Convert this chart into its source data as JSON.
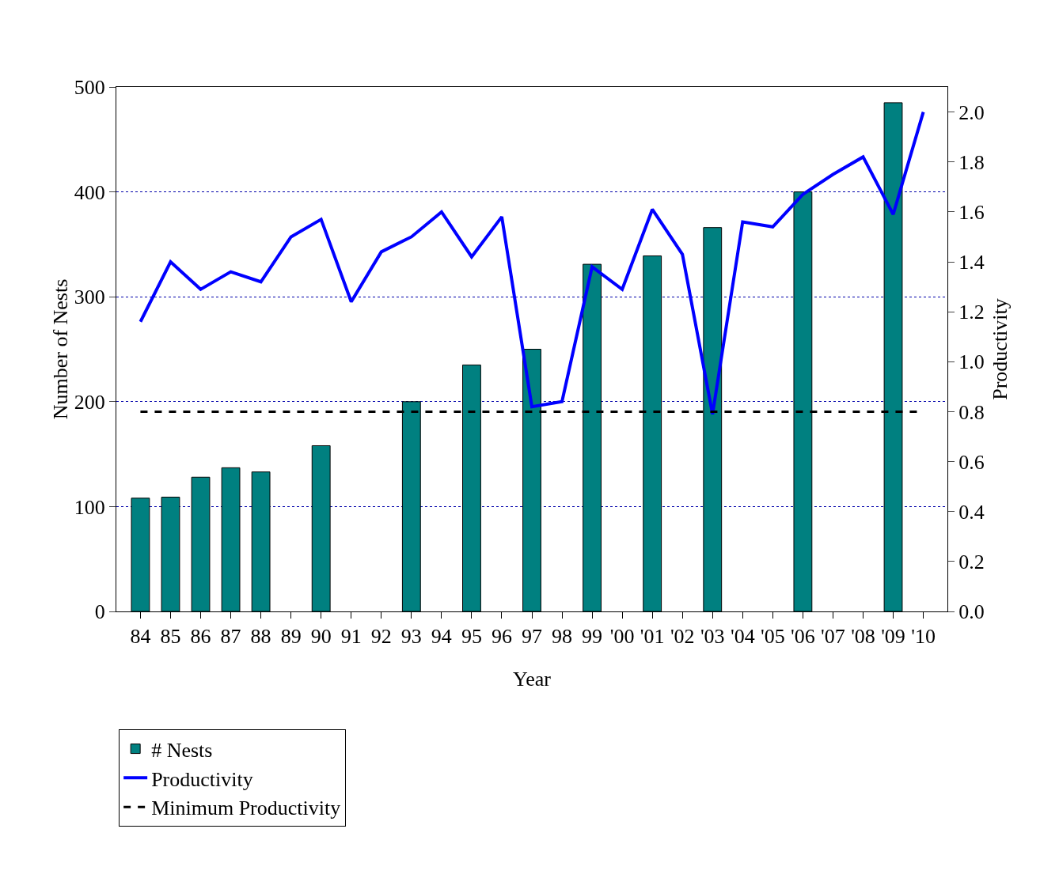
{
  "chart_data": {
    "type": "bar",
    "xlabel": "Year",
    "ylabel": "Number of Nests",
    "y2label": "Productivity",
    "categories": [
      "84",
      "85",
      "86",
      "87",
      "88",
      "89",
      "90",
      "91",
      "92",
      "93",
      "94",
      "95",
      "96",
      "97",
      "98",
      "99",
      "'00",
      "'01",
      "'02",
      "'03",
      "'04",
      "'05",
      "'06",
      "'07",
      "'08",
      "'09",
      "'10"
    ],
    "series": [
      {
        "name": "# Nests",
        "color": "#008080",
        "values": [
          108,
          109,
          128,
          137,
          133,
          null,
          158,
          null,
          null,
          200,
          null,
          235,
          null,
          250,
          null,
          331,
          null,
          339,
          null,
          366,
          null,
          null,
          400,
          null,
          null,
          485,
          null
        ]
      },
      {
        "name": "Productivity",
        "type": "line",
        "axis": "y2",
        "color": "#0000ff",
        "values": [
          1.16,
          1.4,
          1.29,
          1.36,
          1.32,
          1.5,
          1.57,
          1.24,
          1.44,
          1.5,
          1.6,
          1.42,
          1.58,
          0.82,
          0.84,
          1.38,
          1.29,
          1.61,
          1.43,
          0.79,
          1.56,
          1.54,
          1.67,
          1.75,
          1.82,
          1.59,
          2.0
        ]
      }
    ],
    "ylim": [
      0,
      500
    ],
    "yticks": [
      0,
      100,
      200,
      300,
      400,
      500
    ],
    "y2lim": [
      0,
      2.1
    ],
    "y2ticks": [
      {
        "value": 0,
        "label": "0.0"
      },
      {
        "value": 0.2,
        "label": "0.2"
      },
      {
        "value": 0.4,
        "label": "0.4"
      },
      {
        "value": 0.6,
        "label": "0.6"
      },
      {
        "value": 0.8,
        "label": "0.8"
      },
      {
        "value": 1,
        "label": "1.0"
      },
      {
        "value": 1.2,
        "label": "1.2"
      },
      {
        "value": 1.4,
        "label": "1.4"
      },
      {
        "value": 1.6,
        "label": "1.6"
      },
      {
        "value": 1.8,
        "label": "1.8"
      },
      {
        "value": 2,
        "label": "2.0"
      }
    ],
    "ref_lines": [
      {
        "axis": "y2",
        "value": 0.8,
        "label": "Minimum Productivity",
        "color": "#000000",
        "line_style": "dashed"
      }
    ],
    "grid": "y",
    "legend": "bottom left",
    "marker": "none",
    "line_style": "solid"
  }
}
